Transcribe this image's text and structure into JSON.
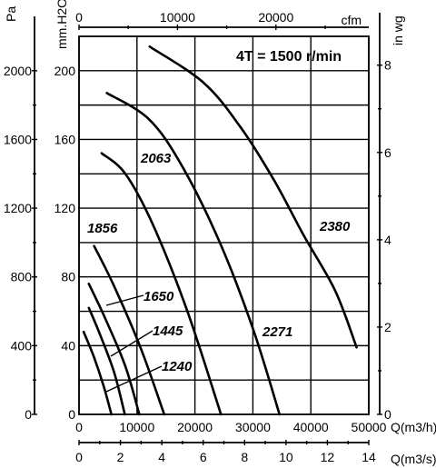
{
  "chart_data": {
    "type": "line",
    "title": "4T = 1500 r/min",
    "axes": {
      "x_primary": {
        "label": "Q(m3/h)",
        "range": [
          0,
          50000
        ],
        "ticks": [
          0,
          10000,
          20000,
          30000,
          40000,
          50000
        ],
        "tick_labels": [
          "0",
          "10000",
          "20000",
          "30000",
          "40000",
          "50000"
        ]
      },
      "x_secondary_bottom": {
        "label": "Q(m3/s)",
        "range": [
          0,
          14
        ],
        "ticks": [
          0,
          2,
          4,
          6,
          8,
          10,
          12,
          14
        ],
        "tick_labels": [
          "0",
          "2",
          "4",
          "6",
          "8",
          "10",
          "12",
          "14"
        ]
      },
      "x_top": {
        "label": "cfm",
        "range": [
          0,
          29430
        ],
        "ticks": [
          0,
          10000,
          20000
        ],
        "tick_labels": [
          "0",
          "10000",
          "20000"
        ]
      },
      "y_left_outer": {
        "label": "Pa",
        "range": [
          0,
          2200
        ],
        "ticks": [
          0,
          400,
          800,
          1200,
          1600,
          2000
        ],
        "tick_labels": [
          "0",
          "400",
          "800",
          "1200",
          "1600",
          "2000"
        ]
      },
      "y_left_inner": {
        "label": "mm.H2O",
        "range": [
          0,
          220
        ],
        "ticks": [
          0,
          40,
          80,
          120,
          160,
          200
        ],
        "tick_labels": [
          "0",
          "40",
          "80",
          "120",
          "160",
          "200"
        ]
      },
      "y_right": {
        "label": "in wg",
        "range": [
          0,
          8.66
        ],
        "ticks": [
          0,
          2,
          4,
          6,
          8
        ],
        "tick_labels": [
          "0",
          "2",
          "4",
          "6",
          "8"
        ]
      }
    },
    "grid": true,
    "series": [
      {
        "name": "1240",
        "x": [
          800,
          2500,
          4200,
          5600
        ],
        "y": [
          48,
          34,
          17,
          0
        ]
      },
      {
        "name": "1445",
        "x": [
          1700,
          3800,
          6100,
          7900
        ],
        "y": [
          62,
          45,
          24,
          0
        ]
      },
      {
        "name": "1650",
        "x": [
          1700,
          4500,
          8000,
          10400
        ],
        "y": [
          76,
          56,
          28,
          0
        ]
      },
      {
        "name": "1856",
        "x": [
          2600,
          6000,
          10600,
          14700
        ],
        "y": [
          98,
          75,
          39,
          0
        ]
      },
      {
        "name": "2063",
        "x": [
          3900,
          8000,
          12800,
          18700,
          24500
        ],
        "y": [
          152,
          140,
          110,
          60,
          0
        ]
      },
      {
        "name": "2271",
        "x": [
          4800,
          12000,
          17700,
          24300,
          30000,
          34600
        ],
        "y": [
          187,
          172,
          145,
          100,
          50,
          0
        ]
      },
      {
        "name": "2380",
        "x": [
          12200,
          21500,
          27900,
          33700,
          38800,
          44200,
          47900
        ],
        "y": [
          214,
          193,
          167,
          136,
          104,
          72,
          39
        ]
      }
    ]
  }
}
